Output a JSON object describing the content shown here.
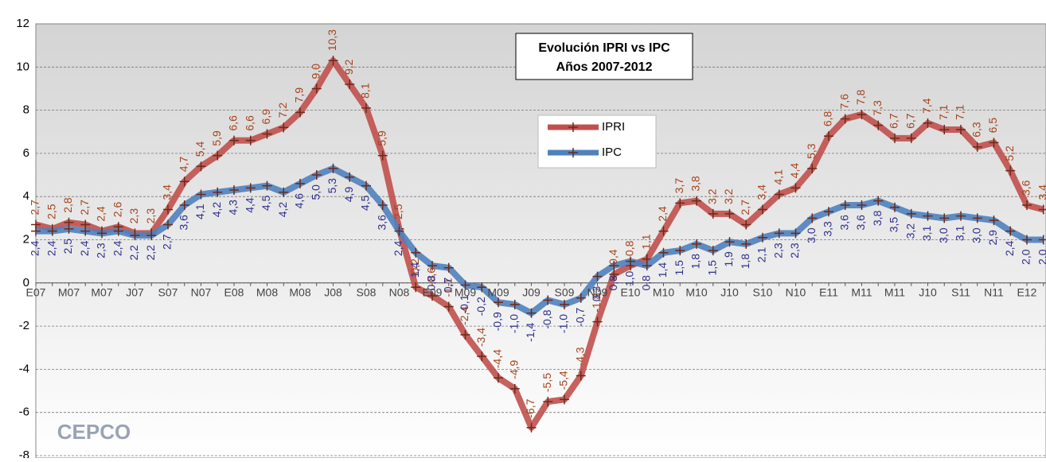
{
  "chart_data": {
    "type": "line",
    "title": "Evolución IPRI vs IPC",
    "subtitle": "Años 2007-2012",
    "logo": "CEPCO",
    "categories": [
      "E07",
      null,
      "M07",
      null,
      "M07",
      null,
      "J07",
      null,
      "S07",
      null,
      "N07",
      null,
      "E08",
      null,
      "M08",
      null,
      "M08",
      null,
      "J08",
      null,
      "S08",
      null,
      "N08",
      null,
      "E09",
      null,
      "M09",
      null,
      "M09",
      null,
      "J09",
      null,
      "S09",
      null,
      "N09",
      null,
      "E10",
      null,
      "M10",
      null,
      "M10",
      null,
      "J10",
      null,
      "S10",
      null,
      "N10",
      null,
      "E11",
      null,
      "M11",
      null,
      "M11",
      null,
      "J10",
      null,
      "S11",
      null,
      "N11",
      null,
      "E12",
      null
    ],
    "series": [
      {
        "name": "IPRI",
        "color": "#c0504d",
        "label_color": "#a5431c",
        "values": [
          2.7,
          2.5,
          2.8,
          2.7,
          2.4,
          2.6,
          2.3,
          2.3,
          3.4,
          4.7,
          5.4,
          5.9,
          6.6,
          6.6,
          6.9,
          7.2,
          7.9,
          9.0,
          10.3,
          9.2,
          8.1,
          5.9,
          2.5,
          -0.2,
          -0.6,
          -1.1,
          -2.4,
          -3.4,
          -4.4,
          -4.9,
          -6.7,
          -5.5,
          -5.4,
          -4.3,
          -1.8,
          0.4,
          0.8,
          1.1,
          2.4,
          3.7,
          3.8,
          3.2,
          3.2,
          2.7,
          3.4,
          4.1,
          4.4,
          5.3,
          6.8,
          7.6,
          7.8,
          7.3,
          6.7,
          6.7,
          7.4,
          7.1,
          7.1,
          6.3,
          6.5,
          5.2,
          3.6,
          3.4
        ],
        "value_labels": [
          "2,7",
          "2,5",
          "2,8",
          "2,7",
          "2,4",
          "2,6",
          "2,3",
          "2,3",
          "3,4",
          "4,7",
          "5,4",
          "5,9",
          "6,6",
          "6,6",
          "6,9",
          "7,2",
          "7,9",
          "9,0",
          "10,3",
          "9,2",
          "8,1",
          "5,9",
          "2,5",
          "-0,2",
          "-0,6",
          "-1,1",
          "-2,4",
          "-3,4",
          "-4,4",
          "-4,9",
          "-6,7",
          "-5,5",
          "-5,4",
          "-4,3",
          "-1,8",
          "0,4",
          "0,8",
          "1,1",
          "2,4",
          "3,7",
          "3,8",
          "3,2",
          "3,2",
          "2,7",
          "3,4",
          "4,1",
          "4,4",
          "5,3",
          "6,8",
          "7,6",
          "7,8",
          "7,3",
          "6,7",
          "6,7",
          "7,4",
          "7,1",
          "7,1",
          "6,3",
          "6,5",
          "5,2",
          "3,6",
          "3,4"
        ]
      },
      {
        "name": "IPC",
        "color": "#4f81bd",
        "label_color": "#2e2e8c",
        "values": [
          2.4,
          2.4,
          2.5,
          2.4,
          2.3,
          2.4,
          2.2,
          2.2,
          2.7,
          3.6,
          4.1,
          4.2,
          4.3,
          4.4,
          4.5,
          4.2,
          4.6,
          5.0,
          5.3,
          4.9,
          4.5,
          3.6,
          2.4,
          1.4,
          0.8,
          0.7,
          -0.1,
          -0.2,
          -0.9,
          -1.0,
          -1.4,
          -0.8,
          -1.0,
          -0.7,
          0.3,
          0.8,
          1.0,
          0.8,
          1.4,
          1.5,
          1.8,
          1.5,
          1.9,
          1.8,
          2.1,
          2.3,
          2.3,
          3.0,
          3.3,
          3.6,
          3.6,
          3.8,
          3.5,
          3.2,
          3.1,
          3.0,
          3.1,
          3.0,
          2.9,
          2.4,
          2.0,
          2.0
        ],
        "value_labels": [
          "2,4",
          "2,4",
          "2,5",
          "2,4",
          "2,3",
          "2,4",
          "2,2",
          "2,2",
          "2,7",
          "3,6",
          "4,1",
          "4,2",
          "4,3",
          "4,4",
          "4,5",
          "4,2",
          "4,6",
          "5,0",
          "5,3",
          "4,9",
          "4,5",
          "3,6",
          "2,4",
          "1,4",
          "0,8",
          "0,7",
          "-0,1",
          "-0,2",
          "-0,9",
          "-1,0",
          "-1,4",
          "-0,8",
          "-1,0",
          "-0,7",
          "0,3",
          "0,8",
          "1,0",
          "0,8",
          "1,4",
          "1,5",
          "1,8",
          "1,5",
          "1,9",
          "1,8",
          "2,1",
          "2,3",
          "2,3",
          "3,0",
          "3,3",
          "3,6",
          "3,6",
          "3,8",
          "3,5",
          "3,2",
          "3,1",
          "3,0",
          "3,1",
          "3,0",
          "2,9",
          "2,4",
          "2,0",
          "2,0"
        ]
      }
    ],
    "ylim": [
      -8,
      12
    ],
    "yticks": [
      -8,
      -6,
      -4,
      -2,
      0,
      2,
      4,
      6,
      8,
      10,
      12
    ],
    "grid": true,
    "legend": "upper center"
  }
}
